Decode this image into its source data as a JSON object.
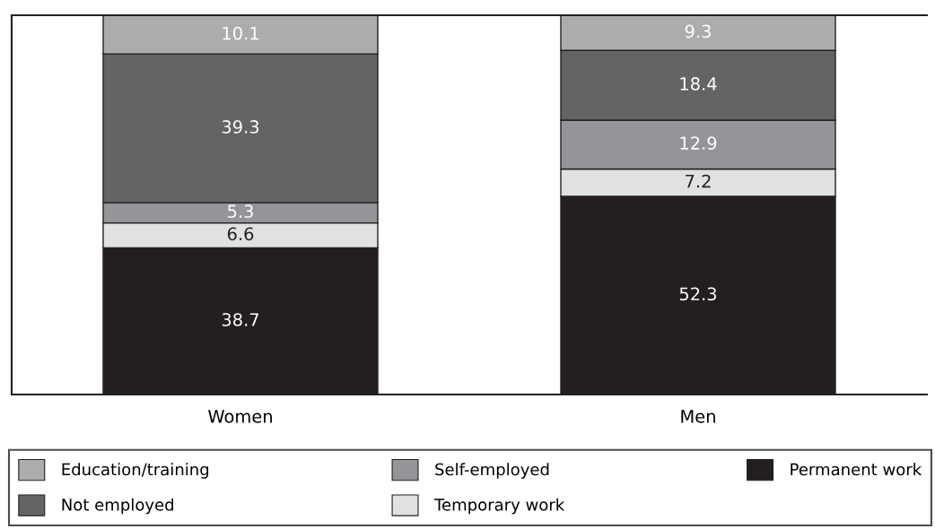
{
  "chart_data": {
    "type": "bar",
    "stacked": true,
    "categories": [
      "Women",
      "Men"
    ],
    "series": [
      {
        "name": "Permanent work",
        "color": "#231f20",
        "values": [
          38.7,
          52.3
        ]
      },
      {
        "name": "Temporary work",
        "color": "#e0e1e3",
        "values": [
          6.6,
          7.2
        ]
      },
      {
        "name": "Self-employed",
        "color": "#939598",
        "values": [
          5.3,
          12.9
        ]
      },
      {
        "name": "Not employed",
        "color": "#636466",
        "values": [
          39.3,
          18.4
        ]
      },
      {
        "name": "Education/training",
        "color": "#abacae",
        "values": [
          10.1,
          9.3
        ]
      }
    ],
    "ylim": [
      0,
      100.1
    ],
    "tick_labels": "x",
    "data_labels": true,
    "legend": "bottom",
    "grid": false
  }
}
